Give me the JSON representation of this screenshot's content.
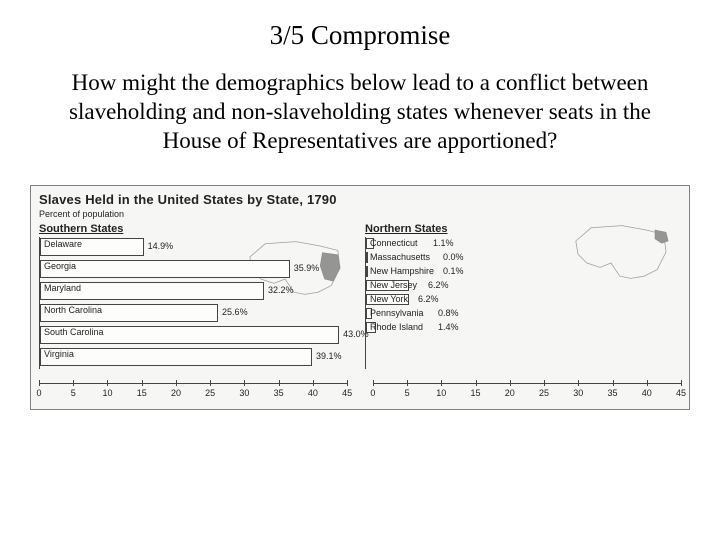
{
  "title": "3/5 Compromise",
  "question": "How might the demographics below lead to a conflict between slaveholding and non-slaveholding states whenever seats in the House of Representatives are apportioned?",
  "chart": {
    "title": "Slaves Held in the United States by State, 1790",
    "subtitle": "Percent of population",
    "axis": {
      "min": 0,
      "max": 45,
      "step": 5,
      "ticks": [
        0,
        5,
        10,
        15,
        20,
        25,
        30,
        35,
        40,
        45
      ]
    },
    "colors": {
      "background": "#f6f6f4",
      "bar_fill": "#fdfdfc",
      "bar_border": "#444444",
      "text": "#222222"
    },
    "south": {
      "label": "Southern States",
      "row_height": "tall",
      "states": [
        {
          "name": "Delaware",
          "value": 14.9
        },
        {
          "name": "Georgia",
          "value": 35.9
        },
        {
          "name": "Maryland",
          "value": 32.2
        },
        {
          "name": "North Carolina",
          "value": 25.6
        },
        {
          "name": "South Carolina",
          "value": 43.0
        },
        {
          "name": "Virginia",
          "value": 39.1
        }
      ]
    },
    "north": {
      "label": "Northern States",
      "row_height": "small",
      "states": [
        {
          "name": "Connecticut",
          "value": 1.1
        },
        {
          "name": "Massachusetts",
          "value": 0.0
        },
        {
          "name": "New Hampshire",
          "value": 0.1
        },
        {
          "name": "New Jersey",
          "value": 6.2
        },
        {
          "name": "New York",
          "value": 6.2
        },
        {
          "name": "Pennsylvania",
          "value": 0.8
        },
        {
          "name": "Rhode Island",
          "value": 1.4
        }
      ]
    }
  }
}
